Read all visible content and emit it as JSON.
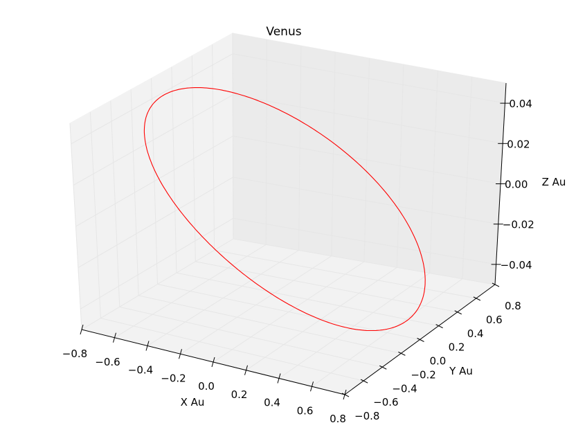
{
  "chart_data": {
    "type": "line",
    "projection": "3d",
    "title": "Venus",
    "xlabel": "X Au",
    "ylabel": "Y Au",
    "zlabel": "Z Au",
    "xlim": [
      -0.8,
      0.8
    ],
    "ylim": [
      -0.8,
      0.8
    ],
    "zlim": [
      -0.05,
      0.05
    ],
    "x_ticks": [
      "−0.8",
      "−0.6",
      "−0.4",
      "−0.2",
      "0.0",
      "0.2",
      "0.4",
      "0.6",
      "0.8"
    ],
    "y_ticks": [
      "−0.8",
      "−0.6",
      "−0.4",
      "−0.2",
      "0.0",
      "0.2",
      "0.4",
      "0.6",
      "0.8"
    ],
    "z_ticks": [
      "−0.04",
      "−0.02",
      "0.00",
      "0.02",
      "0.04"
    ],
    "grid": true,
    "series": [
      {
        "color": "#ff0000",
        "orbit": {
          "a": 0.7233,
          "e": 0.0068,
          "inclination_deg": 3.39
        }
      }
    ]
  }
}
